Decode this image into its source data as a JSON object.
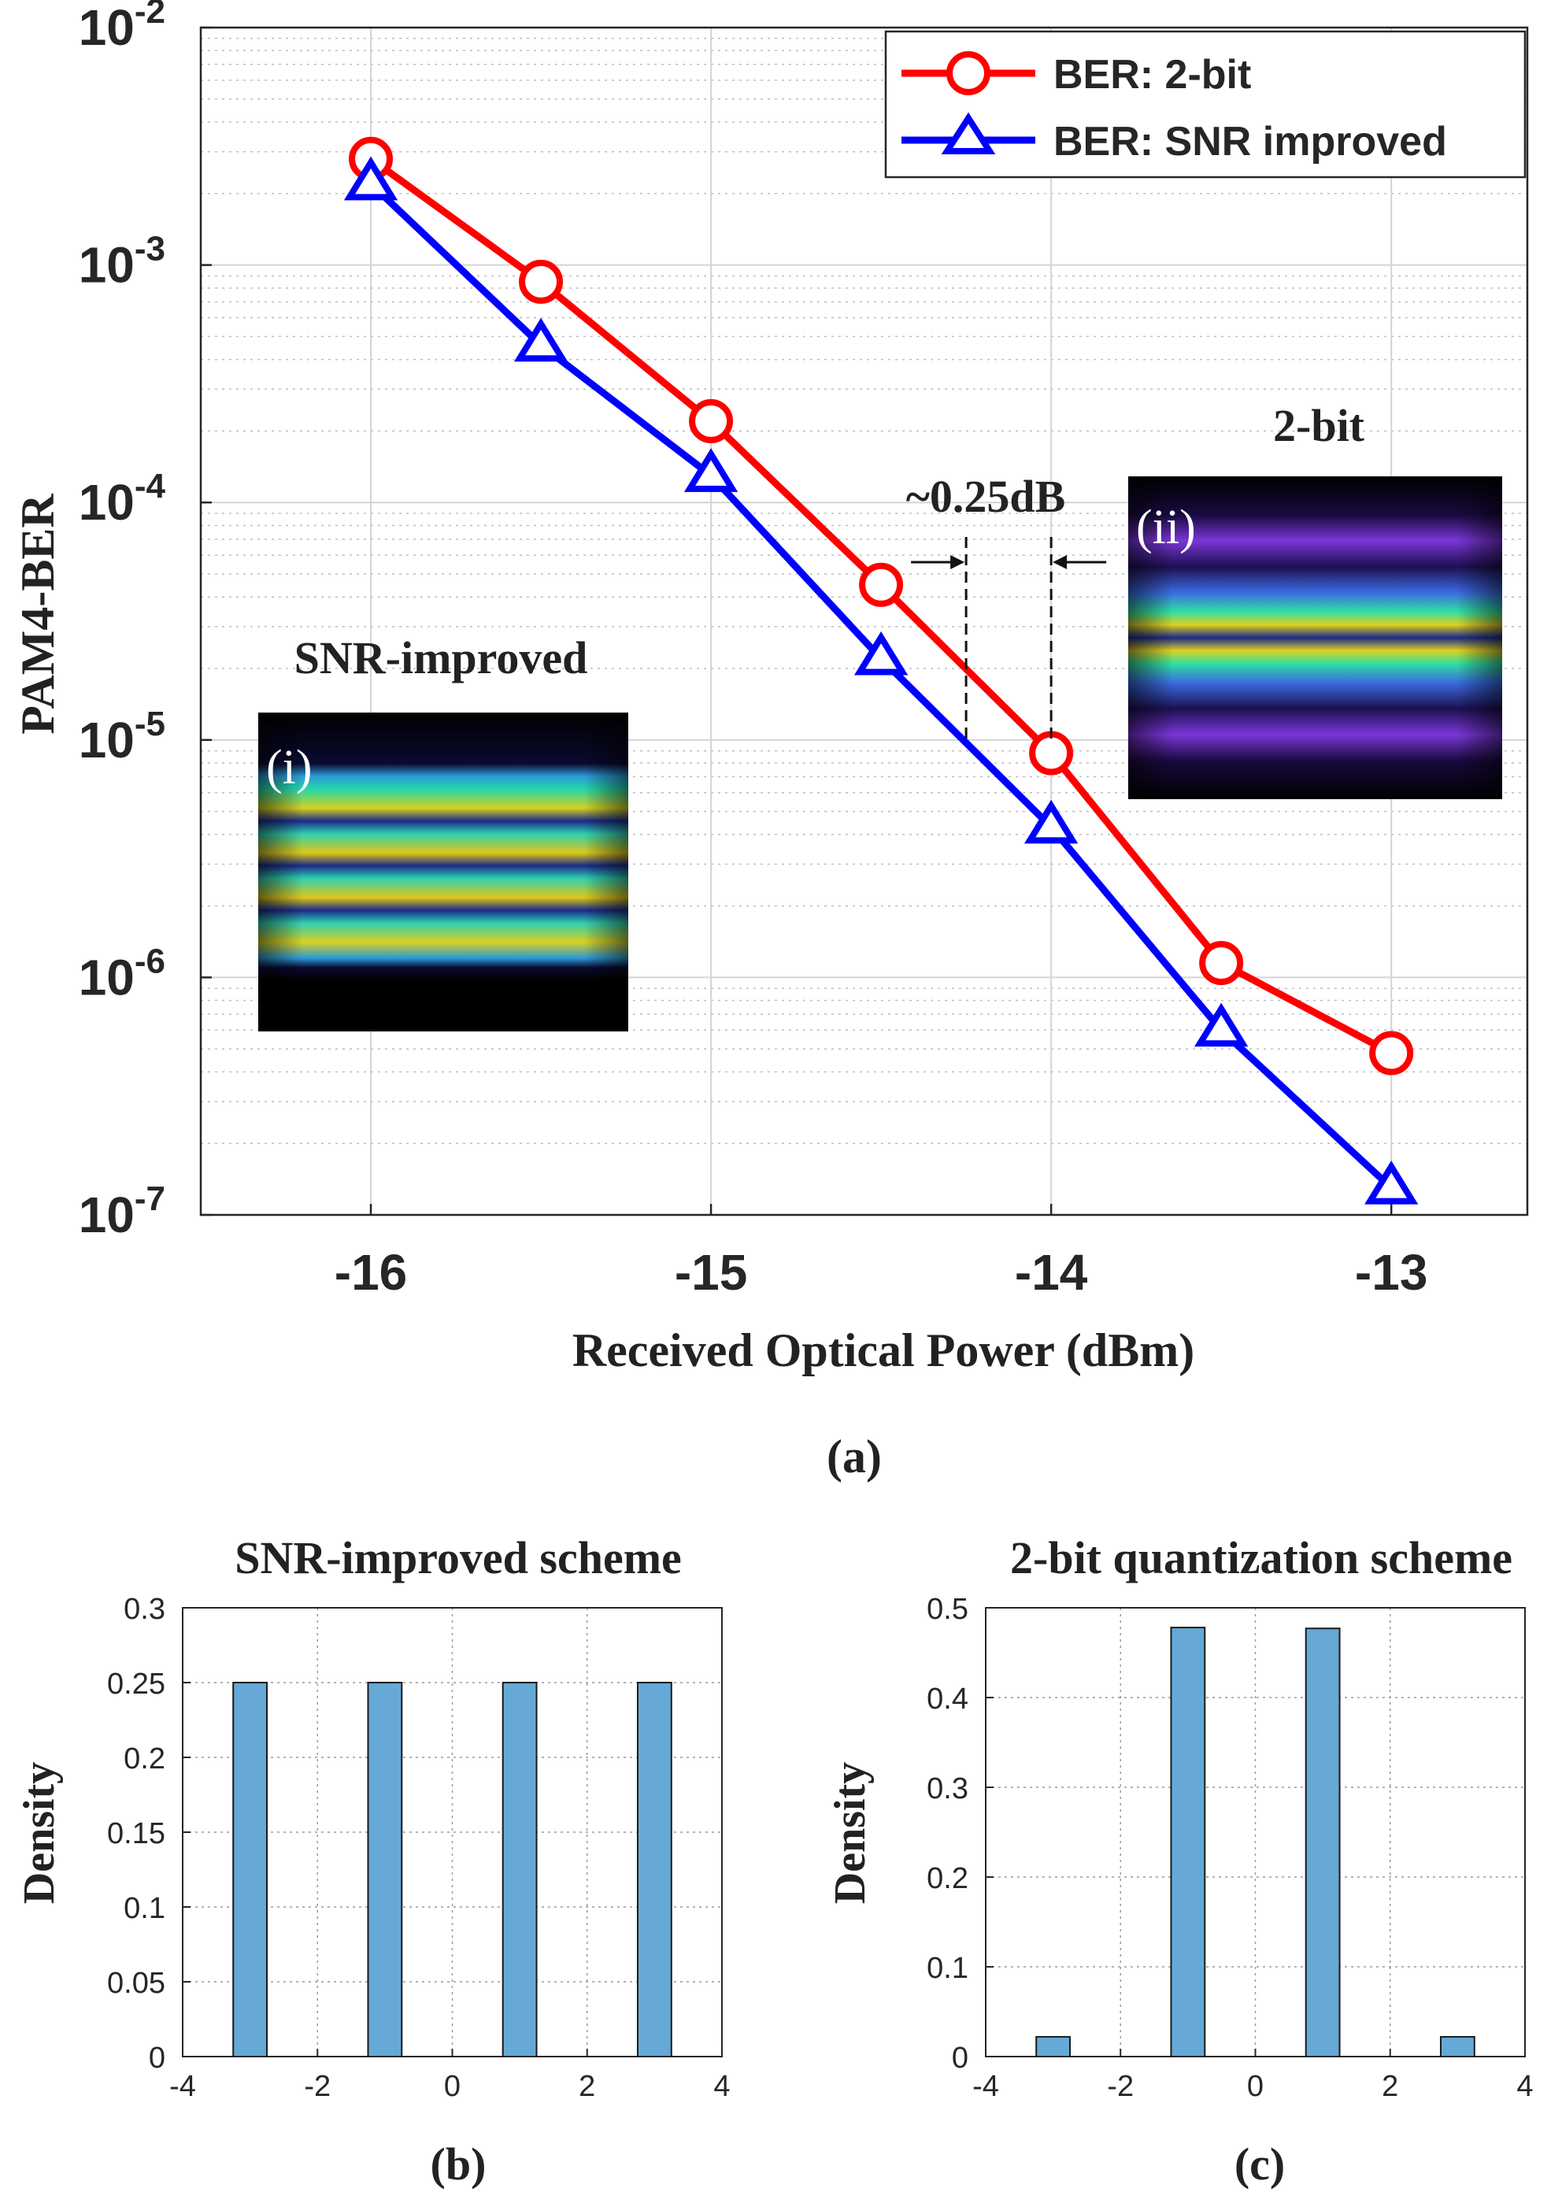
{
  "chart_data": [
    {
      "type": "line",
      "panel_label": "(a)",
      "xlabel": "Received Optical Power (dBm)",
      "ylabel": "PAM4-BER",
      "yscale": "log",
      "xlim": [
        -16.5,
        -12.6
      ],
      "ylim": [
        1e-07,
        0.01
      ],
      "grid": true,
      "legend_position": "top-right",
      "x": [
        -16,
        -15.5,
        -15,
        -14.5,
        -14,
        -13.5,
        -13
      ],
      "series": [
        {
          "name": "BER: 2-bit",
          "color": "#ff0000",
          "marker": "circle",
          "values": [
            0.0028,
            0.00085,
            0.00022,
            4.5e-05,
            8.8e-06,
            1.15e-06,
            4.8e-07
          ]
        },
        {
          "name": "BER: SNR improved",
          "color": "#0000ff",
          "marker": "triangle",
          "values": [
            0.0022,
            0.00046,
            0.00013,
            2.2e-05,
            4.3e-06,
            6e-07,
            1.3e-07
          ]
        }
      ],
      "x_ticks": [
        "-16",
        "-15",
        "-14",
        "-13"
      ],
      "y_ticks": [
        {
          "base": "10",
          "exp": "-7"
        },
        {
          "base": "10",
          "exp": "-6"
        },
        {
          "base": "10",
          "exp": "-5"
        },
        {
          "base": "10",
          "exp": "-4"
        },
        {
          "base": "10",
          "exp": "-3"
        },
        {
          "base": "10",
          "exp": "-2"
        }
      ],
      "annotations": {
        "gap_label": "~0.25dB",
        "gap_markers_x": [
          -14.25,
          -14
        ],
        "inset_i": {
          "title": "SNR-improved",
          "tag": "(i)"
        },
        "inset_ii": {
          "title": "2-bit",
          "tag": "(ii)"
        }
      }
    },
    {
      "type": "bar",
      "panel_label": "(b)",
      "title": "SNR-improved scheme",
      "ylabel": "Density",
      "x": [
        -3,
        -1,
        1,
        3
      ],
      "values": [
        0.25,
        0.25,
        0.25,
        0.25
      ],
      "bar_color": "#66a9d6",
      "xlim": [
        -4,
        4
      ],
      "ylim": [
        0,
        0.3
      ],
      "x_ticks": [
        "-4",
        "-2",
        "0",
        "2",
        "4"
      ],
      "y_ticks": [
        "0",
        "0.05",
        "0.1",
        "0.15",
        "0.2",
        "0.25",
        "0.3"
      ],
      "grid": true
    },
    {
      "type": "bar",
      "panel_label": "(c)",
      "title": "2-bit quantization scheme",
      "ylabel": "Density",
      "x": [
        -3,
        -1,
        1,
        3
      ],
      "values": [
        0.022,
        0.478,
        0.477,
        0.022
      ],
      "bar_color": "#66a9d6",
      "xlim": [
        -4,
        4
      ],
      "ylim": [
        0,
        0.5
      ],
      "x_ticks": [
        "-4",
        "-2",
        "0",
        "2",
        "4"
      ],
      "y_ticks": [
        "0",
        "0.1",
        "0.2",
        "0.3",
        "0.4",
        "0.5"
      ],
      "grid": true
    }
  ]
}
